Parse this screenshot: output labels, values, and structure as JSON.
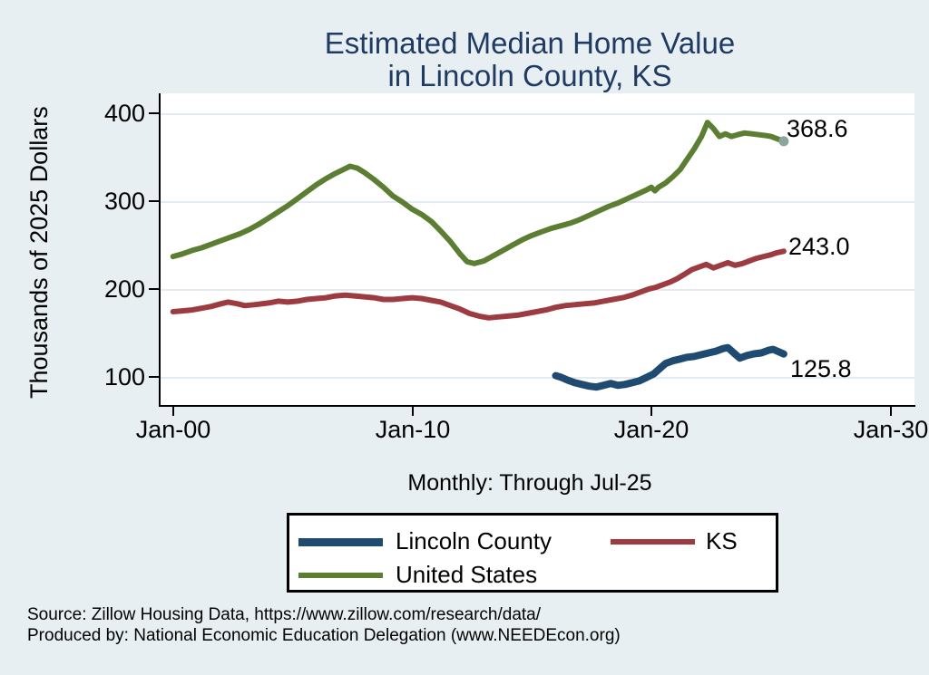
{
  "title": {
    "line1": "Estimated Median Home Value",
    "line2": "in Lincoln County, KS"
  },
  "chart_data": {
    "type": "line",
    "title": "Estimated Median Home Value in Lincoln County, KS",
    "subtitle": "Monthly: Through Jul-25",
    "ylabel": "Thousands of 2025 Dollars",
    "xlabel": "",
    "x_ticks": [
      "Jan-00",
      "Jan-10",
      "Jan-20",
      "Jan-30"
    ],
    "y_ticks": [
      "400",
      "300",
      "200",
      "100"
    ],
    "y_tick_values": [
      400,
      300,
      200,
      100
    ],
    "ylim": [
      70,
      424
    ],
    "xlim_years": [
      1999.5,
      2031.0
    ],
    "grid": true,
    "legend_position": "bottom-center",
    "x_unit": "decimal year (2000 = Jan-00), data monthly through Jul-25",
    "y_unit": "thousands of 2025 dollars",
    "series": [
      {
        "name": "Lincoln County",
        "color": "#1e4b6f",
        "stroke_width": 8,
        "end_label": "125.8",
        "points": [
          [
            2016.0,
            101
          ],
          [
            2016.25,
            99
          ],
          [
            2016.5,
            96
          ],
          [
            2016.8,
            93
          ],
          [
            2017.1,
            91
          ],
          [
            2017.4,
            89
          ],
          [
            2017.7,
            88
          ],
          [
            2018.0,
            90
          ],
          [
            2018.3,
            92
          ],
          [
            2018.6,
            90
          ],
          [
            2018.9,
            91
          ],
          [
            2019.2,
            93
          ],
          [
            2019.5,
            95
          ],
          [
            2019.8,
            99
          ],
          [
            2020.1,
            103
          ],
          [
            2020.35,
            109
          ],
          [
            2020.6,
            115
          ],
          [
            2020.9,
            118
          ],
          [
            2021.2,
            120
          ],
          [
            2021.5,
            122
          ],
          [
            2021.8,
            123
          ],
          [
            2022.1,
            125
          ],
          [
            2022.4,
            127
          ],
          [
            2022.7,
            129
          ],
          [
            2023.0,
            132
          ],
          [
            2023.2,
            133
          ],
          [
            2023.45,
            127
          ],
          [
            2023.7,
            121
          ],
          [
            2024.0,
            124
          ],
          [
            2024.3,
            126
          ],
          [
            2024.6,
            127
          ],
          [
            2024.9,
            130
          ],
          [
            2025.1,
            131
          ],
          [
            2025.54,
            125.8
          ]
        ]
      },
      {
        "name": "KS",
        "color": "#9c3c40",
        "stroke_width": 6,
        "end_label": "243.0",
        "points": [
          [
            2000.0,
            174
          ],
          [
            2000.4,
            175
          ],
          [
            2000.8,
            176
          ],
          [
            2001.2,
            178
          ],
          [
            2001.6,
            180
          ],
          [
            2002.0,
            183
          ],
          [
            2002.3,
            185
          ],
          [
            2002.7,
            183
          ],
          [
            2003.0,
            181
          ],
          [
            2003.4,
            182
          ],
          [
            2004.0,
            184
          ],
          [
            2004.4,
            186
          ],
          [
            2004.8,
            185
          ],
          [
            2005.2,
            186
          ],
          [
            2005.6,
            188
          ],
          [
            2006.0,
            189
          ],
          [
            2006.4,
            190
          ],
          [
            2006.8,
            192
          ],
          [
            2007.2,
            193
          ],
          [
            2007.6,
            192
          ],
          [
            2008.0,
            191
          ],
          [
            2008.4,
            190
          ],
          [
            2008.8,
            188
          ],
          [
            2009.2,
            188
          ],
          [
            2009.6,
            189
          ],
          [
            2010.0,
            190
          ],
          [
            2010.4,
            189
          ],
          [
            2010.8,
            187
          ],
          [
            2011.2,
            185
          ],
          [
            2011.6,
            181
          ],
          [
            2012.0,
            177
          ],
          [
            2012.4,
            172
          ],
          [
            2012.8,
            169
          ],
          [
            2013.2,
            167
          ],
          [
            2013.6,
            168
          ],
          [
            2014.0,
            169
          ],
          [
            2014.4,
            170
          ],
          [
            2014.8,
            172
          ],
          [
            2015.2,
            174
          ],
          [
            2015.6,
            176
          ],
          [
            2016.0,
            179
          ],
          [
            2016.4,
            181
          ],
          [
            2016.8,
            182
          ],
          [
            2017.2,
            183
          ],
          [
            2017.6,
            184
          ],
          [
            2018.0,
            186
          ],
          [
            2018.4,
            188
          ],
          [
            2018.8,
            190
          ],
          [
            2019.2,
            193
          ],
          [
            2019.6,
            197
          ],
          [
            2019.9,
            200
          ],
          [
            2020.2,
            202
          ],
          [
            2020.5,
            205
          ],
          [
            2020.8,
            208
          ],
          [
            2021.1,
            212
          ],
          [
            2021.4,
            217
          ],
          [
            2021.7,
            222
          ],
          [
            2022.0,
            225
          ],
          [
            2022.3,
            228
          ],
          [
            2022.6,
            224
          ],
          [
            2022.9,
            227
          ],
          [
            2023.2,
            230
          ],
          [
            2023.5,
            227
          ],
          [
            2023.8,
            229
          ],
          [
            2024.1,
            232
          ],
          [
            2024.4,
            235
          ],
          [
            2024.7,
            237
          ],
          [
            2025.0,
            239
          ],
          [
            2025.2,
            241
          ],
          [
            2025.54,
            243
          ]
        ]
      },
      {
        "name": "United States",
        "color": "#5c7e33",
        "stroke_width": 6,
        "end_label": "368.6",
        "end_marker_color": "#8ba59c",
        "points": [
          [
            2000.0,
            237
          ],
          [
            2000.4,
            240
          ],
          [
            2000.8,
            244
          ],
          [
            2001.2,
            247
          ],
          [
            2001.6,
            251
          ],
          [
            2002.0,
            255
          ],
          [
            2002.4,
            259
          ],
          [
            2002.8,
            263
          ],
          [
            2003.2,
            268
          ],
          [
            2003.6,
            274
          ],
          [
            2004.0,
            281
          ],
          [
            2004.4,
            288
          ],
          [
            2004.8,
            295
          ],
          [
            2005.2,
            303
          ],
          [
            2005.6,
            311
          ],
          [
            2006.0,
            319
          ],
          [
            2006.4,
            326
          ],
          [
            2006.8,
            332
          ],
          [
            2007.1,
            336
          ],
          [
            2007.4,
            340
          ],
          [
            2007.7,
            338
          ],
          [
            2008.0,
            333
          ],
          [
            2008.4,
            325
          ],
          [
            2008.8,
            316
          ],
          [
            2009.2,
            306
          ],
          [
            2009.6,
            299
          ],
          [
            2010.0,
            291
          ],
          [
            2010.4,
            285
          ],
          [
            2010.8,
            277
          ],
          [
            2011.2,
            266
          ],
          [
            2011.6,
            254
          ],
          [
            2012.0,
            240
          ],
          [
            2012.3,
            231
          ],
          [
            2012.6,
            229
          ],
          [
            2013.0,
            232
          ],
          [
            2013.4,
            238
          ],
          [
            2013.8,
            244
          ],
          [
            2014.2,
            250
          ],
          [
            2014.6,
            256
          ],
          [
            2015.0,
            261
          ],
          [
            2015.4,
            265
          ],
          [
            2015.8,
            269
          ],
          [
            2016.2,
            272
          ],
          [
            2016.6,
            275
          ],
          [
            2017.0,
            279
          ],
          [
            2017.4,
            284
          ],
          [
            2017.8,
            289
          ],
          [
            2018.2,
            294
          ],
          [
            2018.6,
            298
          ],
          [
            2019.0,
            303
          ],
          [
            2019.4,
            308
          ],
          [
            2019.8,
            313
          ],
          [
            2020.0,
            316
          ],
          [
            2020.15,
            312
          ],
          [
            2020.3,
            316
          ],
          [
            2020.6,
            321
          ],
          [
            2020.9,
            328
          ],
          [
            2021.2,
            336
          ],
          [
            2021.5,
            348
          ],
          [
            2021.8,
            360
          ],
          [
            2022.1,
            374
          ],
          [
            2022.35,
            390
          ],
          [
            2022.6,
            383
          ],
          [
            2022.85,
            374
          ],
          [
            2023.1,
            377
          ],
          [
            2023.35,
            374
          ],
          [
            2023.6,
            376
          ],
          [
            2023.9,
            378
          ],
          [
            2024.2,
            377
          ],
          [
            2024.5,
            376
          ],
          [
            2024.8,
            375
          ],
          [
            2025.0,
            374
          ],
          [
            2025.2,
            372
          ],
          [
            2025.54,
            368.6
          ]
        ]
      }
    ]
  },
  "legend": {
    "items": [
      {
        "label": "Lincoln County"
      },
      {
        "label": "KS"
      },
      {
        "label": "United States"
      }
    ]
  },
  "footer": {
    "line1": "Source: Zillow Housing Data, https://www.zillow.com/research/data/",
    "line2": "Produced by: National Economic Education Delegation (www.NEEDEcon.org)"
  },
  "colors": {
    "background": "#e8eff2",
    "plot_background": "#ffffff",
    "gridline": "#e2ebf1",
    "title_text": "#1f3a63",
    "axis_text": "#000000",
    "lincoln_county_line": "#1e4b6f",
    "ks_line": "#9c3c40",
    "united_states_line": "#5c7e33",
    "end_marker": "#8ba59c"
  }
}
